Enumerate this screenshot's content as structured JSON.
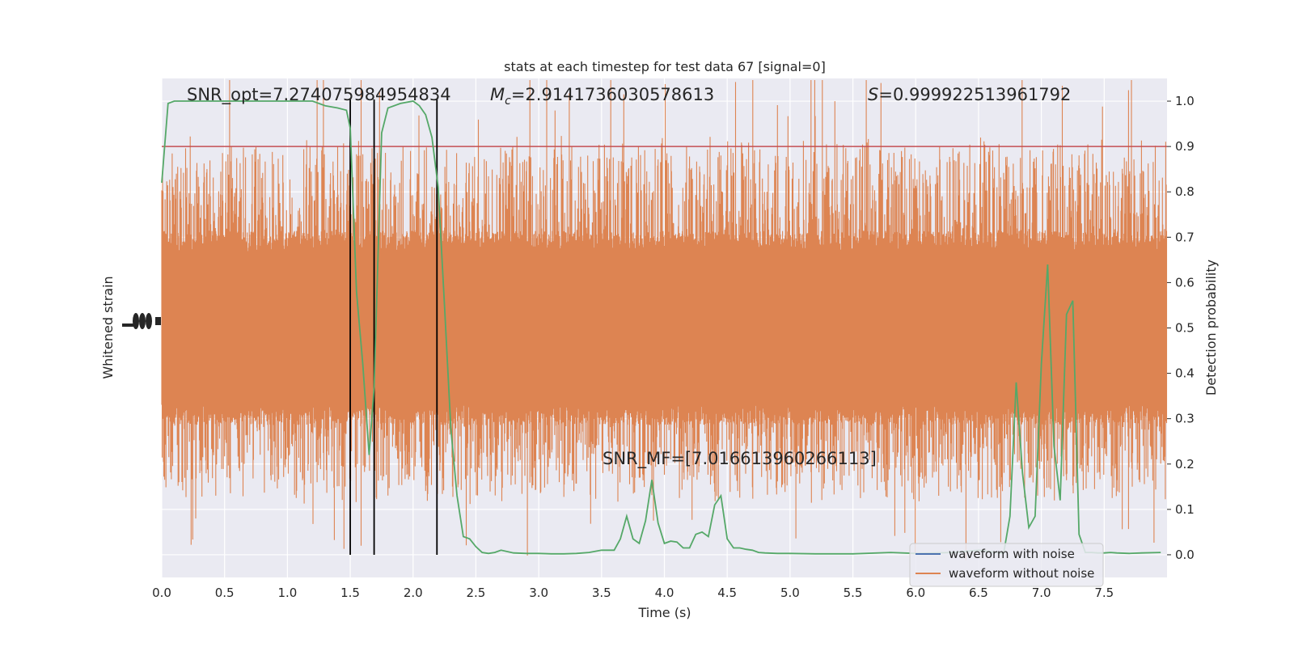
{
  "chart_data": {
    "type": "line",
    "title": "stats at each timestep for test data 67 [signal=0]",
    "xlabel": "Time (s)",
    "ylabel_left": "Whitened strain",
    "ylabel_right": "Detection probability",
    "xlim": [
      0,
      8
    ],
    "ylim_right": [
      -0.05,
      1.05
    ],
    "x_ticks": [
      "0.0",
      "0.5",
      "1.0",
      "1.5",
      "2.0",
      "2.5",
      "3.0",
      "3.5",
      "4.0",
      "4.5",
      "5.0",
      "5.5",
      "6.0",
      "6.5",
      "7.0",
      "7.5"
    ],
    "y_ticks_right": [
      "0.0",
      "0.1",
      "0.2",
      "0.3",
      "0.4",
      "0.5",
      "0.6",
      "0.7",
      "0.8",
      "0.9",
      "1.0"
    ],
    "grid": true,
    "legend": {
      "position": "lower-right",
      "entries": [
        {
          "label": "waveform with noise",
          "color": "#4c72b0"
        },
        {
          "label": "waveform without noise",
          "color": "#dd8452"
        }
      ]
    },
    "annotations": {
      "snr_opt": "SNR_opt=7.274075984954834",
      "mc_prefix": "M",
      "mc_sub": "c",
      "mc_value": "=2.9141736030578613",
      "s_prefix": "S",
      "s_value": "=0.999922513961792",
      "snr_mf": "SNR_MF=[7.016613960266113]"
    },
    "threshold": {
      "y": 0.9,
      "color": "#c44e52"
    },
    "vertical_markers": [
      1.5,
      1.69,
      2.19
    ],
    "strain_noise": {
      "description_color": "#dd8452",
      "center_probability_equiv": 0.5,
      "color": "#dd8452"
    },
    "series": [
      {
        "name": "Detection probability",
        "color": "#55a868",
        "x": [
          0.0,
          0.05,
          0.1,
          0.15,
          0.2,
          0.3,
          0.5,
          0.7,
          0.9,
          1.0,
          1.1,
          1.2,
          1.3,
          1.4,
          1.47,
          1.5,
          1.55,
          1.6,
          1.65,
          1.69,
          1.75,
          1.8,
          1.9,
          2.0,
          2.05,
          2.1,
          2.15,
          2.2,
          2.25,
          2.3,
          2.35,
          2.4,
          2.45,
          2.5,
          2.55,
          2.6,
          2.65,
          2.7,
          2.8,
          2.9,
          3.0,
          3.1,
          3.2,
          3.3,
          3.4,
          3.5,
          3.6,
          3.65,
          3.7,
          3.75,
          3.8,
          3.85,
          3.9,
          3.95,
          4.0,
          4.05,
          4.1,
          4.15,
          4.2,
          4.25,
          4.3,
          4.35,
          4.4,
          4.45,
          4.5,
          4.55,
          4.6,
          4.65,
          4.7,
          4.75,
          4.8,
          4.9,
          5.0,
          5.2,
          5.5,
          5.8,
          6.0,
          6.3,
          6.5,
          6.7,
          6.75,
          6.8,
          6.85,
          6.9,
          6.95,
          7.0,
          7.05,
          7.1,
          7.15,
          7.2,
          7.25,
          7.3,
          7.35,
          7.4,
          7.45,
          7.5,
          7.55,
          7.6,
          7.7,
          7.8,
          7.95
        ],
        "y": [
          0.82,
          0.995,
          1.0,
          1.0,
          1.0,
          1.0,
          1.0,
          1.0,
          1.0,
          1.0,
          1.0,
          1.0,
          0.99,
          0.985,
          0.98,
          0.94,
          0.58,
          0.42,
          0.22,
          0.37,
          0.93,
          0.985,
          0.995,
          1.0,
          0.99,
          0.97,
          0.92,
          0.81,
          0.55,
          0.28,
          0.13,
          0.04,
          0.035,
          0.018,
          0.005,
          0.003,
          0.005,
          0.01,
          0.004,
          0.003,
          0.003,
          0.002,
          0.002,
          0.003,
          0.005,
          0.01,
          0.01,
          0.035,
          0.085,
          0.035,
          0.025,
          0.075,
          0.165,
          0.07,
          0.025,
          0.03,
          0.028,
          0.015,
          0.015,
          0.045,
          0.05,
          0.04,
          0.11,
          0.13,
          0.035,
          0.015,
          0.015,
          0.012,
          0.01,
          0.005,
          0.004,
          0.003,
          0.003,
          0.002,
          0.002,
          0.005,
          0.003,
          0.005,
          0.01,
          0.003,
          0.085,
          0.38,
          0.18,
          0.06,
          0.085,
          0.42,
          0.64,
          0.24,
          0.12,
          0.53,
          0.56,
          0.045,
          0.005,
          0.005,
          0.004,
          0.004,
          0.005,
          0.004,
          0.003,
          0.004,
          0.005
        ]
      }
    ]
  }
}
